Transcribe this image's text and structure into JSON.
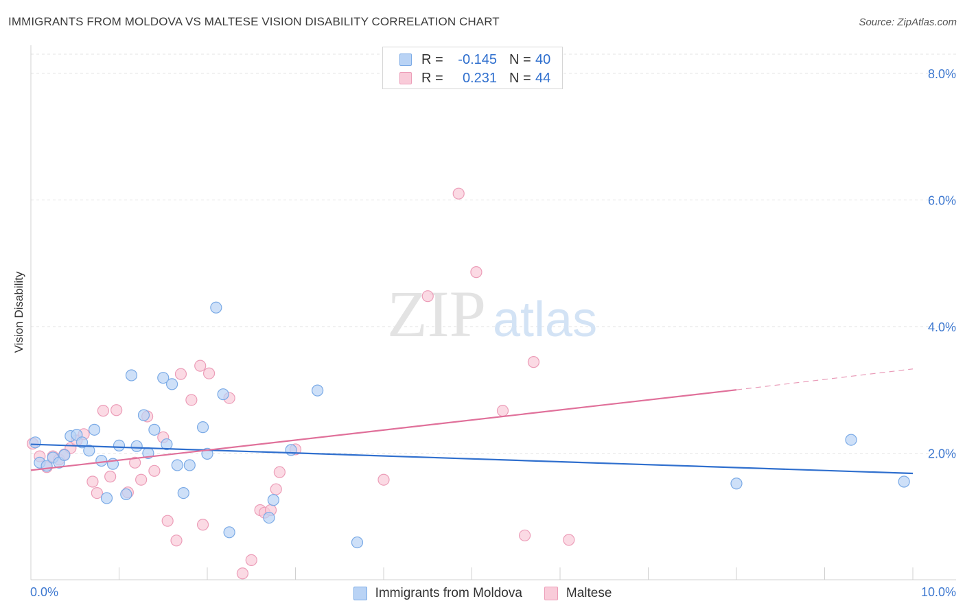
{
  "title": "IMMIGRANTS FROM MOLDOVA VS MALTESE VISION DISABILITY CORRELATION CHART",
  "source": "Source: ZipAtlas.com",
  "watermark": {
    "zip": "ZIP",
    "atlas": "atlas"
  },
  "legend": {
    "rows": [
      {
        "r_label": "R =",
        "r_value": "-0.145",
        "n_label": "N =",
        "n_value": "40"
      },
      {
        "r_label": "R =",
        "r_value": "0.231",
        "n_label": "N =",
        "n_value": "44"
      }
    ]
  },
  "bottom_legend": [
    "Immigrants from Moldova",
    "Maltese"
  ],
  "colors": {
    "blue_fill": "#b9d3f5",
    "blue_stroke": "#7aaae6",
    "blue_line": "#2f6fce",
    "pink_fill": "#f9cbd9",
    "pink_stroke": "#ec9db8",
    "pink_line": "#e0709a",
    "axis_text": "#3d78d0",
    "grid": "#e3e3e3"
  },
  "chart_data": {
    "type": "scatter",
    "title": "IMMIGRANTS FROM MOLDOVA VS MALTESE VISION DISABILITY CORRELATION CHART",
    "xlabel": "",
    "ylabel": "Vision Disability",
    "xlim": [
      0,
      10
    ],
    "ylim": [
      0,
      8.4
    ],
    "x_tick_labels": [
      "0.0%",
      "10.0%"
    ],
    "y_ticks": [
      2,
      4,
      6,
      8
    ],
    "y_tick_labels": [
      "2.0%",
      "4.0%",
      "6.0%",
      "8.0%"
    ],
    "series": [
      {
        "name": "Immigrants from Moldova",
        "r": -0.145,
        "n": 40,
        "trend": {
          "x0": 0,
          "y0": 2.14,
          "x1": 10,
          "y1": 1.68
        },
        "points": [
          [
            0.05,
            2.17
          ],
          [
            0.1,
            1.85
          ],
          [
            0.18,
            1.8
          ],
          [
            0.25,
            1.93
          ],
          [
            0.32,
            1.85
          ],
          [
            0.38,
            1.97
          ],
          [
            0.45,
            2.27
          ],
          [
            0.52,
            2.29
          ],
          [
            0.58,
            2.17
          ],
          [
            0.66,
            2.04
          ],
          [
            0.72,
            2.37
          ],
          [
            0.8,
            1.88
          ],
          [
            0.86,
            1.29
          ],
          [
            0.93,
            1.83
          ],
          [
            1.0,
            2.12
          ],
          [
            1.08,
            1.35
          ],
          [
            1.14,
            3.23
          ],
          [
            1.2,
            2.11
          ],
          [
            1.28,
            2.6
          ],
          [
            1.33,
            2.0
          ],
          [
            1.4,
            2.37
          ],
          [
            1.5,
            3.19
          ],
          [
            1.54,
            2.14
          ],
          [
            1.6,
            3.09
          ],
          [
            1.66,
            1.81
          ],
          [
            1.73,
            1.37
          ],
          [
            1.8,
            1.81
          ],
          [
            1.95,
            2.41
          ],
          [
            2.0,
            1.99
          ],
          [
            2.1,
            4.3
          ],
          [
            2.18,
            2.93
          ],
          [
            2.25,
            0.75
          ],
          [
            2.7,
            0.98
          ],
          [
            2.75,
            1.26
          ],
          [
            2.95,
            2.05
          ],
          [
            3.25,
            2.99
          ],
          [
            3.7,
            0.59
          ],
          [
            8.0,
            1.52
          ],
          [
            9.3,
            2.21
          ],
          [
            9.9,
            1.55
          ]
        ]
      },
      {
        "name": "Maltese",
        "r": 0.231,
        "n": 44,
        "trend": {
          "x0": 0,
          "y0": 1.73,
          "x1": 8.0,
          "y1": 3.0,
          "dash_x1": 10,
          "dash_y1": 3.33
        },
        "points": [
          [
            0.02,
            2.15
          ],
          [
            0.1,
            1.95
          ],
          [
            0.18,
            1.78
          ],
          [
            0.25,
            1.95
          ],
          [
            0.32,
            1.9
          ],
          [
            0.38,
            1.98
          ],
          [
            0.45,
            2.08
          ],
          [
            0.52,
            2.2
          ],
          [
            0.6,
            2.3
          ],
          [
            0.7,
            1.55
          ],
          [
            0.75,
            1.37
          ],
          [
            0.82,
            2.67
          ],
          [
            0.9,
            1.63
          ],
          [
            0.97,
            2.68
          ],
          [
            1.1,
            1.38
          ],
          [
            1.18,
            1.85
          ],
          [
            1.25,
            1.58
          ],
          [
            1.32,
            2.58
          ],
          [
            1.4,
            1.72
          ],
          [
            1.5,
            2.25
          ],
          [
            1.55,
            0.93
          ],
          [
            1.65,
            0.62
          ],
          [
            1.7,
            3.25
          ],
          [
            1.82,
            2.84
          ],
          [
            1.92,
            3.38
          ],
          [
            1.95,
            0.87
          ],
          [
            2.02,
            3.26
          ],
          [
            2.25,
            2.87
          ],
          [
            2.4,
            0.1
          ],
          [
            2.5,
            0.31
          ],
          [
            2.6,
            1.1
          ],
          [
            2.65,
            1.06
          ],
          [
            2.72,
            1.1
          ],
          [
            2.78,
            1.43
          ],
          [
            2.82,
            1.7
          ],
          [
            3.0,
            2.06
          ],
          [
            4.0,
            1.58
          ],
          [
            4.5,
            4.48
          ],
          [
            4.85,
            6.1
          ],
          [
            5.05,
            4.86
          ],
          [
            5.35,
            2.67
          ],
          [
            5.6,
            0.7
          ],
          [
            5.7,
            3.44
          ],
          [
            6.1,
            0.63
          ]
        ]
      }
    ]
  }
}
